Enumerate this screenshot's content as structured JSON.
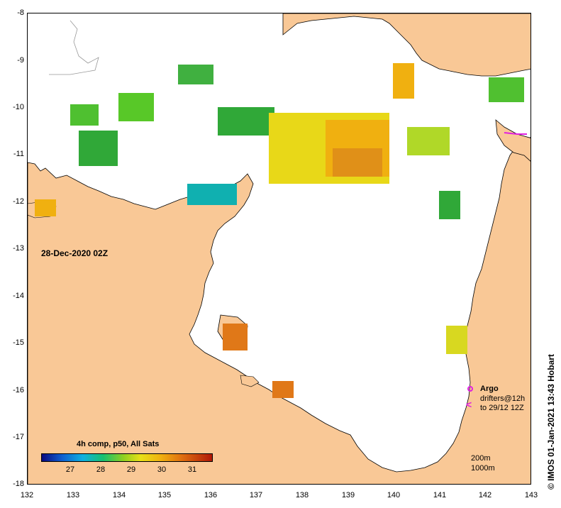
{
  "map": {
    "date_label": "28-Dec-2020 02Z",
    "x_ticks": [
      "132",
      "133",
      "134",
      "135",
      "136",
      "137",
      "138",
      "139",
      "140",
      "141",
      "142",
      "143"
    ],
    "y_ticks": [
      "-8",
      "-9",
      "-10",
      "-11",
      "-12",
      "-13",
      "-14",
      "-15",
      "-16",
      "-17",
      "-18"
    ],
    "colors": {
      "land": "#f9c896",
      "sea": "#ffffff",
      "argo": "#e020e0",
      "coastline": "#000000"
    }
  },
  "colorbar": {
    "title": "4h comp, p50, All Sats",
    "tick_labels": [
      "27",
      "28",
      "29",
      "30",
      "31"
    ],
    "tick_values": [
      27,
      28,
      29,
      30,
      31
    ],
    "range": [
      26.2,
      31.8
    ]
  },
  "legend": {
    "argo": "Argo",
    "drifters": "drifters@12h",
    "drifter_period": "to 29/12 12Z",
    "drifter_icon": "<",
    "depth_200": "200m",
    "depth_1000": "1000m"
  },
  "credit": "© IMOS 01-Jan-2021 13:43 Hobart"
}
